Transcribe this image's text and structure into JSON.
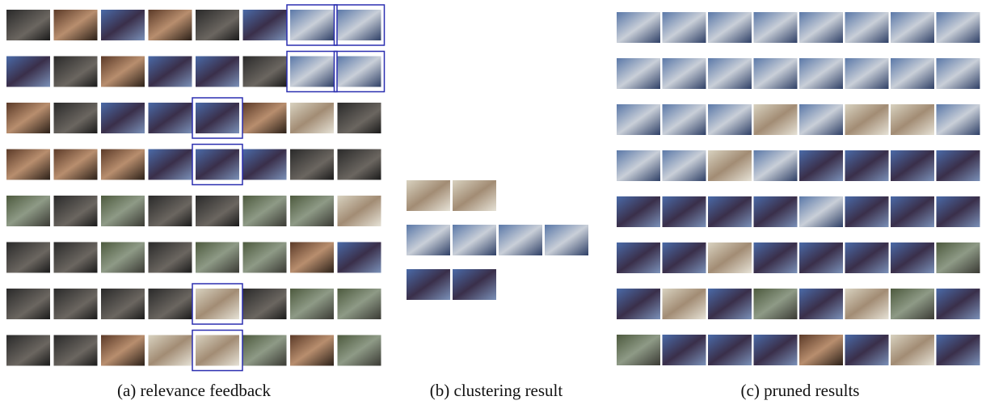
{
  "captions": [
    "(a) relevance feedback",
    "(b) clustering result",
    "(c) pruned results"
  ]
}
